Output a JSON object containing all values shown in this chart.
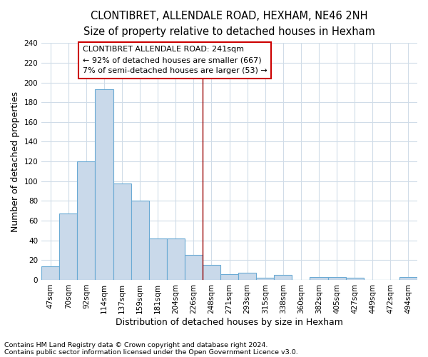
{
  "title": "CLONTIBRET, ALLENDALE ROAD, HEXHAM, NE46 2NH",
  "subtitle": "Size of property relative to detached houses in Hexham",
  "xlabel": "Distribution of detached houses by size in Hexham",
  "ylabel": "Number of detached properties",
  "bar_color": "#c9d9ea",
  "bar_edge_color": "#6aaad4",
  "categories": [
    "47sqm",
    "70sqm",
    "92sqm",
    "114sqm",
    "137sqm",
    "159sqm",
    "181sqm",
    "204sqm",
    "226sqm",
    "248sqm",
    "271sqm",
    "293sqm",
    "315sqm",
    "338sqm",
    "360sqm",
    "382sqm",
    "405sqm",
    "427sqm",
    "449sqm",
    "472sqm",
    "494sqm"
  ],
  "values": [
    14,
    67,
    120,
    193,
    98,
    80,
    42,
    42,
    25,
    15,
    6,
    7,
    2,
    5,
    0,
    3,
    3,
    2,
    0,
    0,
    3
  ],
  "property_line_x": 8.5,
  "annotation_line1": "CLONTIBRET ALLENDALE ROAD: 241sqm",
  "annotation_line2": "← 92% of detached houses are smaller (667)",
  "annotation_line3": "7% of semi-detached houses are larger (53) →",
  "annotation_box_color": "#ffffff",
  "annotation_box_edge": "#cc0000",
  "vline_color": "#990000",
  "ylim": [
    0,
    240
  ],
  "yticks": [
    0,
    20,
    40,
    60,
    80,
    100,
    120,
    140,
    160,
    180,
    200,
    220,
    240
  ],
  "footnote1": "Contains HM Land Registry data © Crown copyright and database right 2024.",
  "footnote2": "Contains public sector information licensed under the Open Government Licence v3.0.",
  "background_color": "#ffffff",
  "grid_color": "#d0dce8",
  "title_fontsize": 10.5,
  "subtitle_fontsize": 9.5,
  "axis_label_fontsize": 9,
  "tick_fontsize": 7.5,
  "annotation_fontsize": 8,
  "footnote_fontsize": 6.8
}
